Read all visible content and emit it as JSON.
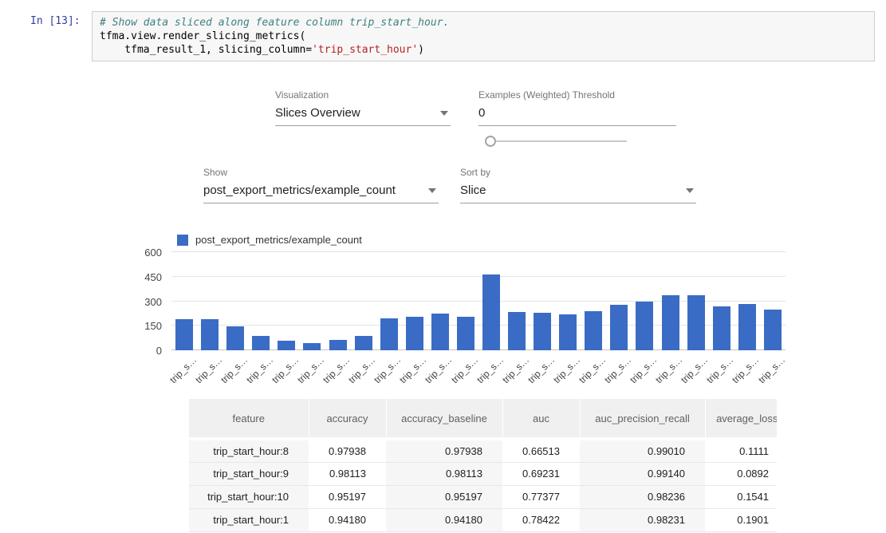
{
  "notebook": {
    "prompt": "In [13]:",
    "code": {
      "comment": "# Show data sliced along feature column trip_start_hour.",
      "line2": "tfma.view.render_slicing_metrics(",
      "line3_indent": "    tfma_result_1, slicing_column=",
      "line3_string": "'trip_start_hour'",
      "line3_close": ")"
    }
  },
  "controls": {
    "visualization": {
      "label": "Visualization",
      "value": "Slices Overview"
    },
    "threshold": {
      "label": "Examples (Weighted) Threshold",
      "value": "0"
    },
    "show": {
      "label": "Show",
      "value": "post_export_metrics/example_count"
    },
    "sort_by": {
      "label": "Sort by",
      "value": "Slice"
    }
  },
  "chart_data": {
    "type": "bar",
    "title": "",
    "legend": "post_export_metrics/example_count",
    "bar_color": "#3b6cc5",
    "ylim": [
      0,
      600
    ],
    "yticks": [
      0,
      150,
      300,
      450,
      600
    ],
    "grid": true,
    "legend_position": "top",
    "categories": [
      "trip_s…",
      "trip_s…",
      "trip_s…",
      "trip_s…",
      "trip_s…",
      "trip_s…",
      "trip_s…",
      "trip_s…",
      "trip_s…",
      "trip_s…",
      "trip_s…",
      "trip_s…",
      "trip_s…",
      "trip_s…",
      "trip_s…",
      "trip_s…",
      "trip_s…",
      "trip_s…",
      "trip_s…",
      "trip_s…",
      "trip_s…",
      "trip_s…",
      "trip_s…",
      "trip_s…"
    ],
    "values": [
      190,
      188,
      148,
      88,
      60,
      45,
      65,
      88,
      193,
      205,
      224,
      205,
      465,
      235,
      230,
      220,
      240,
      277,
      298,
      337,
      337,
      270,
      281,
      250
    ]
  },
  "table": {
    "headers": [
      "feature",
      "accuracy",
      "accuracy_baseline",
      "auc",
      "auc_precision_recall",
      "average_loss"
    ],
    "rows": [
      [
        "trip_start_hour:8",
        "0.97938",
        "0.97938",
        "0.66513",
        "0.99010",
        "0.1111"
      ],
      [
        "trip_start_hour:9",
        "0.98113",
        "0.98113",
        "0.69231",
        "0.99140",
        "0.0892"
      ],
      [
        "trip_start_hour:10",
        "0.95197",
        "0.95197",
        "0.77377",
        "0.98236",
        "0.1541"
      ],
      [
        "trip_start_hour:1",
        "0.94180",
        "0.94180",
        "0.78422",
        "0.98231",
        "0.1901"
      ]
    ]
  }
}
